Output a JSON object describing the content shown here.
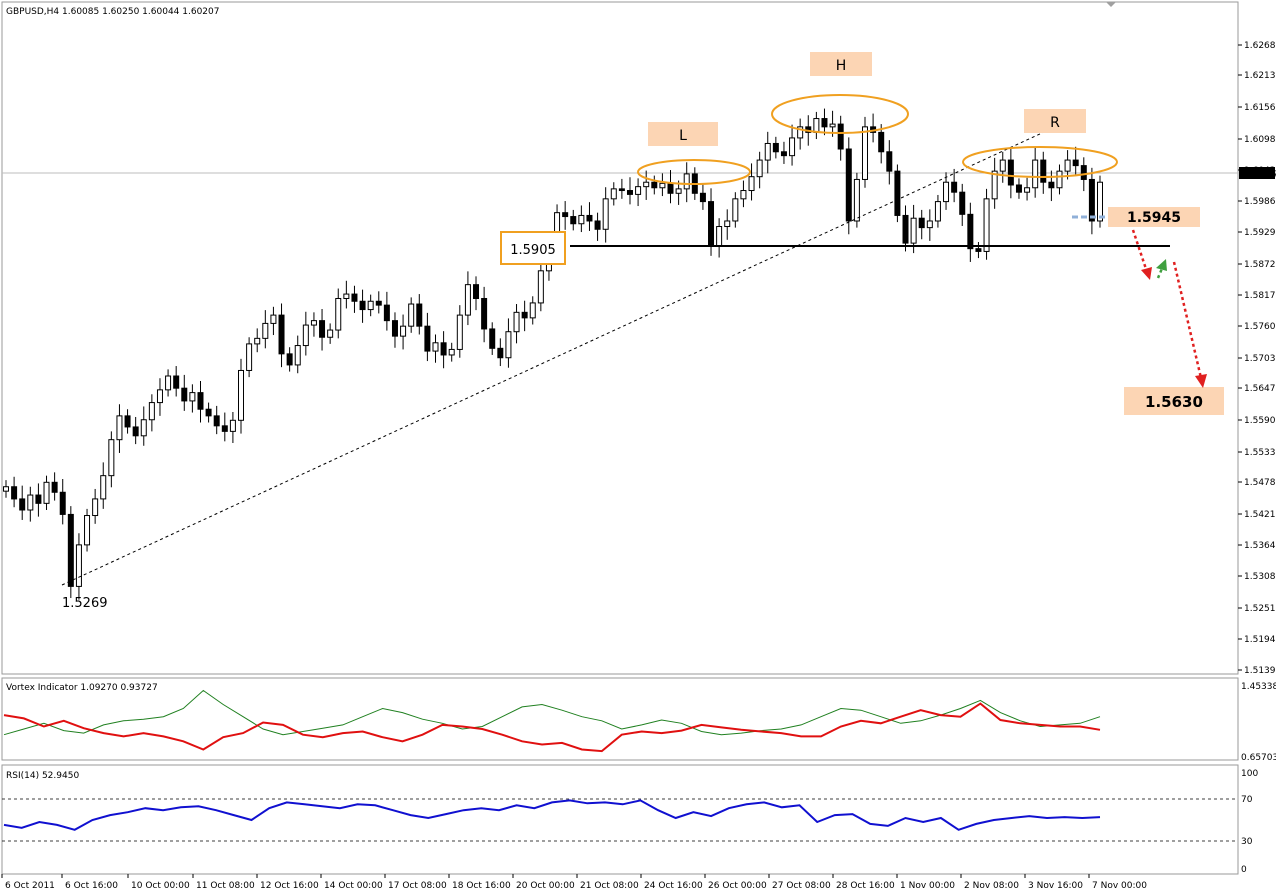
{
  "chart_data": [
    {
      "type": "candlestick",
      "header": "GBPUSD,H4  1.60085 1.60250 1.60044 1.60207",
      "current_price": "1.60207",
      "ylim": [
        1.5139,
        1.6313
      ],
      "y_ticks": [
        "1.62685",
        "1.62130",
        "1.61560",
        "1.60980",
        "1.60420",
        "1.59866",
        "1.59295",
        "1.58725",
        "1.58170",
        "1.57600",
        "1.57030",
        "1.56475",
        "1.55905",
        "1.55335",
        "1.54780",
        "1.54210",
        "1.53640",
        "1.53085",
        "1.52515",
        "1.51945",
        "1.51390"
      ],
      "x_ticks": [
        "6 Oct 2011",
        "6 Oct 16:00",
        "10 Oct 00:00",
        "11 Oct 08:00",
        "12 Oct 16:00",
        "14 Oct 00:00",
        "17 Oct 08:00",
        "18 Oct 16:00",
        "20 Oct 00:00",
        "21 Oct 08:00",
        "24 Oct 16:00",
        "26 Oct 00:00",
        "27 Oct 08:00",
        "28 Oct 16:00",
        "1 Nov 00:00",
        "2 Nov 08:00",
        "3 Nov 16:00",
        "7 Nov 00:00"
      ],
      "closes": [
        1.547,
        1.5448,
        1.5428,
        1.5455,
        1.544,
        1.5478,
        1.546,
        1.542,
        1.529,
        1.5365,
        1.5418,
        1.5448,
        1.549,
        1.5555,
        1.5598,
        1.5578,
        1.5562,
        1.5591,
        1.5622,
        1.5645,
        1.567,
        1.5648,
        1.5625,
        1.564,
        1.561,
        1.5598,
        1.558,
        1.557,
        1.559,
        1.568,
        1.5728,
        1.5738,
        1.5765,
        1.578,
        1.571,
        1.569,
        1.5725,
        1.5762,
        1.577,
        1.574,
        1.5753,
        1.581,
        1.5818,
        1.5805,
        1.579,
        1.5805,
        1.5798,
        1.577,
        1.5742,
        1.576,
        1.58,
        1.576,
        1.5715,
        1.573,
        1.5708,
        1.5718,
        1.578,
        1.5835,
        1.581,
        1.5755,
        1.572,
        1.5703,
        1.575,
        1.5785,
        1.5775,
        1.5802,
        1.586,
        1.5905,
        1.5965,
        1.5958,
        1.5945,
        1.596,
        1.595,
        1.5935,
        1.599,
        1.6008,
        1.6005,
        1.5998,
        1.6012,
        1.602,
        1.601,
        1.6018,
        1.6,
        1.6008,
        1.6035,
        1.6,
        1.5985,
        1.5905,
        1.594,
        1.595,
        1.599,
        1.6005,
        1.603,
        1.606,
        1.609,
        1.6075,
        1.6068,
        1.61,
        1.612,
        1.611,
        1.6135,
        1.612,
        1.6125,
        1.608,
        1.595,
        1.6025,
        1.612,
        1.611,
        1.6075,
        1.604,
        1.596,
        1.591,
        1.5955,
        1.5938,
        1.595,
        1.5985,
        1.602,
        1.6002,
        1.5962,
        1.59,
        1.5895,
        1.599,
        1.604,
        1.606,
        1.6015,
        1.6002,
        1.601,
        1.606,
        1.602,
        1.601,
        1.604,
        1.606,
        1.605,
        1.6025,
        1.595,
        1.602
      ],
      "annotations": {
        "head_label": "H",
        "left_shoulder_label": "L",
        "right_shoulder_label": "R",
        "neckline_level": "1.5905",
        "low_level": "1.5269",
        "retest_level": "1.5945",
        "target_level": "1.5630"
      },
      "colors": {
        "accent_orange": "#f0a020",
        "label_fill": "#fcd5b4",
        "down_arrow": "#e02020",
        "up_arrow": "#40a040",
        "retest_dash": "#90b0d8"
      }
    },
    {
      "type": "line",
      "title": "Vortex Indicator 1.09270 0.93727",
      "y_ticks": [
        "1.45338",
        "0.65703"
      ],
      "ylim": [
        0.62,
        1.5
      ],
      "series": [
        {
          "color": "#208020",
          "values": [
            0.88,
            0.95,
            1.02,
            0.93,
            0.9,
            1.0,
            1.05,
            1.07,
            1.1,
            1.2,
            1.42,
            1.25,
            1.1,
            0.95,
            0.88,
            0.92,
            0.96,
            1.0,
            1.1,
            1.2,
            1.15,
            1.07,
            1.02,
            0.95,
            0.98,
            1.1,
            1.22,
            1.25,
            1.18,
            1.1,
            1.05,
            0.95,
            1.0,
            1.06,
            1.02,
            0.92,
            0.88,
            0.9,
            0.93,
            0.95,
            1.0,
            1.1,
            1.2,
            1.18,
            1.1,
            1.02,
            1.05,
            1.12,
            1.2,
            1.3,
            1.15,
            1.05,
            0.98,
            1.0,
            1.02,
            1.1
          ]
        },
        {
          "color": "#e01010",
          "values": [
            1.12,
            1.08,
            0.98,
            1.05,
            0.96,
            0.9,
            0.86,
            0.9,
            0.86,
            0.8,
            0.7,
            0.85,
            0.9,
            1.03,
            1.0,
            0.88,
            0.85,
            0.9,
            0.92,
            0.85,
            0.8,
            0.88,
            1.0,
            0.98,
            0.95,
            0.88,
            0.8,
            0.76,
            0.78,
            0.7,
            0.68,
            0.88,
            0.92,
            0.9,
            0.93,
            1.0,
            0.97,
            0.94,
            0.92,
            0.9,
            0.86,
            0.86,
            0.98,
            1.05,
            1.02,
            1.1,
            1.18,
            1.12,
            1.1,
            1.26,
            1.06,
            1.02,
            1.0,
            0.98,
            0.98,
            0.94
          ]
        }
      ]
    },
    {
      "type": "line",
      "title": "RSI(14) 52.9450",
      "y_ticks": [
        "100",
        "70",
        "30",
        "0"
      ],
      "ylim": [
        0,
        100
      ],
      "levels": [
        70,
        30
      ],
      "series": [
        {
          "color": "#1010d0",
          "values": [
            45,
            42,
            48,
            45,
            40,
            50,
            55,
            58,
            62,
            60,
            63,
            64,
            60,
            55,
            50,
            62,
            68,
            66,
            64,
            62,
            66,
            65,
            60,
            55,
            52,
            56,
            60,
            62,
            60,
            65,
            62,
            68,
            70,
            67,
            68,
            66,
            70,
            60,
            52,
            58,
            54,
            62,
            66,
            68,
            63,
            65,
            48,
            55,
            56,
            46,
            44,
            52,
            48,
            52,
            40,
            46,
            50,
            52,
            54,
            52,
            53,
            52,
            53
          ]
        }
      ]
    }
  ]
}
